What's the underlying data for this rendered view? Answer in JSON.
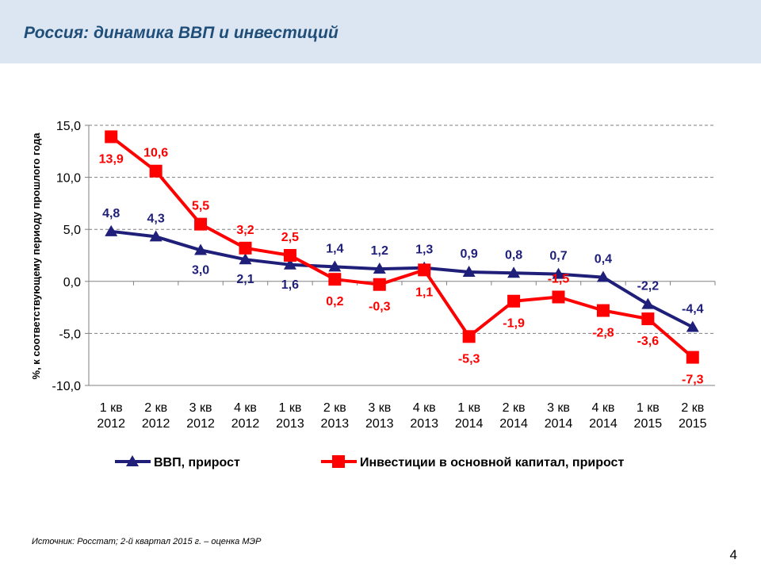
{
  "slide": {
    "title": "Россия: динамика ВВП и инвестиций",
    "source": "Источник: Росстат; 2-й квартал 2015 г. – оценка МЭР",
    "page_number": "4"
  },
  "colors": {
    "header_bg": "#dce6f2",
    "title": "#1f4e79",
    "gdp": "#1f1f7a",
    "investment": "#ff0000"
  },
  "chart_data": {
    "type": "line",
    "ylabel": "%, к соответствующему периоду прошлого года",
    "xlabel": "",
    "ylim": [
      -10,
      15
    ],
    "yticks": [
      15,
      10,
      5,
      0,
      -5,
      -10
    ],
    "ytick_labels": [
      "15,0",
      "10,0",
      "5,0",
      "0,0",
      "-5,0",
      "-10,0"
    ],
    "grid": "horizontal dashed",
    "legend_position": "bottom",
    "categories": [
      [
        "1 кв",
        "2012"
      ],
      [
        "2 кв",
        "2012"
      ],
      [
        "3 кв",
        "2012"
      ],
      [
        "4 кв",
        "2012"
      ],
      [
        "1 кв",
        "2013"
      ],
      [
        "2 кв",
        "2013"
      ],
      [
        "3 кв",
        "2013"
      ],
      [
        "4 кв",
        "2013"
      ],
      [
        "1 кв",
        "2014"
      ],
      [
        "2 кв",
        "2014"
      ],
      [
        "3 кв",
        "2014"
      ],
      [
        "4 кв",
        "2014"
      ],
      [
        "1 кв",
        "2015"
      ],
      [
        "2 кв",
        "2015"
      ]
    ],
    "series": [
      {
        "name": "ВВП, прирост",
        "marker": "triangle",
        "values": [
          4.8,
          4.3,
          3.0,
          2.1,
          1.6,
          1.4,
          1.2,
          1.3,
          0.9,
          0.8,
          0.7,
          0.4,
          -2.2,
          -4.4
        ],
        "labels": [
          "4,8",
          "4,3",
          "3,0",
          "2,1",
          "1,6",
          "1,4",
          "1,2",
          "1,3",
          "0,9",
          "0,8",
          "0,7",
          "0,4",
          "-2,2",
          "-4,4"
        ]
      },
      {
        "name": "Инвестиции в основной капитал, прирост",
        "marker": "square",
        "values": [
          13.9,
          10.6,
          5.5,
          3.2,
          2.5,
          0.2,
          -0.3,
          1.1,
          -5.3,
          -1.9,
          -1.5,
          -2.8,
          -3.6,
          -7.3
        ],
        "labels": [
          "13,9",
          "10,6",
          "5,5",
          "3,2",
          "2,5",
          "0,2",
          "-0,3",
          "1,1",
          "-5,3",
          "-1,9",
          "-1,5",
          "-2,8",
          "-3,6",
          "-7,3"
        ]
      }
    ]
  }
}
